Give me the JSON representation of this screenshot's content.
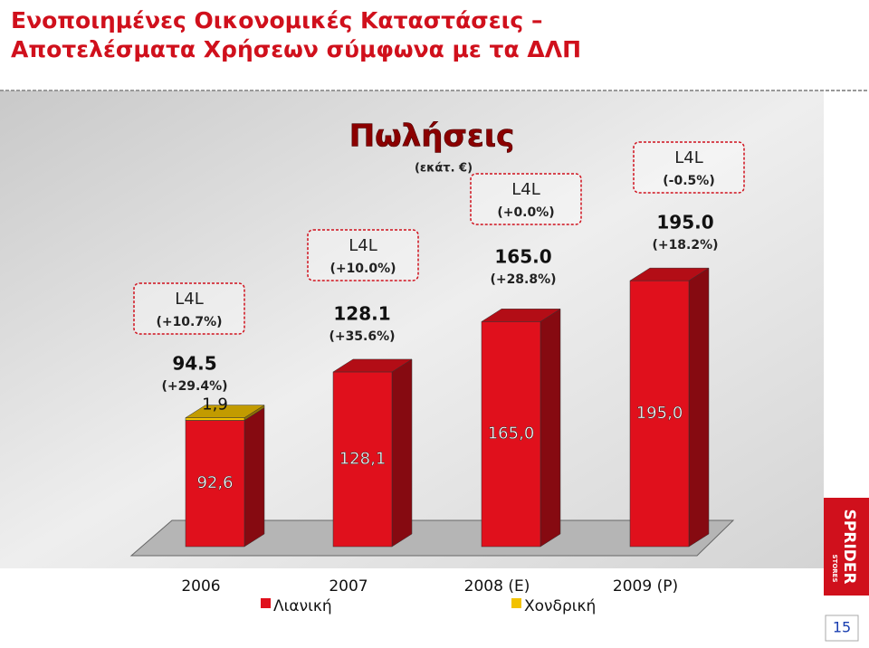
{
  "slide_title": [
    "Ενοποιημένες Οικονομικές Καταστάσεις –",
    "Αποτελέσματα Χρήσεων σύμφωνα με τα ΔΛΠ"
  ],
  "logo": {
    "brand": "SPRIDER",
    "sub": "STORES"
  },
  "page_number": "15",
  "chart_data": {
    "type": "bar3d_stacked",
    "title": "Πωλήσεις",
    "subtitle": "(εκάτ. €)",
    "categories": [
      "2006",
      "2007",
      "2008 (E)",
      "2009 (P)"
    ],
    "series": [
      {
        "name": "Λιανική",
        "color": "#e0101c",
        "values": [
          92.6,
          128.1,
          165.0,
          195.0
        ],
        "value_labels": [
          "92,6",
          "128,1",
          "165,0",
          "195,0"
        ]
      },
      {
        "name": "Χονδρική",
        "color": "#f2c200",
        "values": [
          1.9,
          null,
          null,
          null
        ],
        "value_labels": [
          "1,9",
          null,
          null,
          null
        ]
      }
    ],
    "ylim": [
      0,
      215
    ],
    "annotations": [
      {
        "l4l": "L4L",
        "l4l_change": "(+10.7%)",
        "total": "94.5",
        "growth": "(+29.4%)"
      },
      {
        "l4l": "L4L",
        "l4l_change": "(+10.0%)",
        "total": "128.1",
        "growth": "(+35.6%)"
      },
      {
        "l4l": "L4L",
        "l4l_change": "(+0.0%)",
        "total": "165.0",
        "growth": "(+28.8%)"
      },
      {
        "l4l": "L4L",
        "l4l_change": "(-0.5%)",
        "total": "195.0",
        "growth": "(+18.2%)"
      }
    ]
  }
}
